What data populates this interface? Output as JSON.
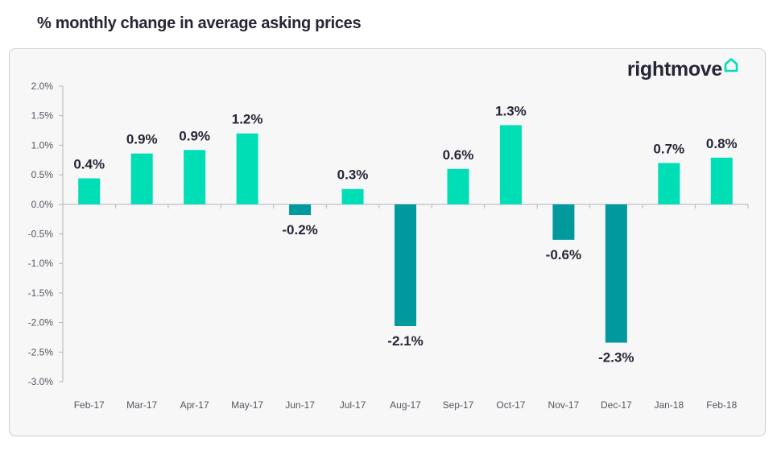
{
  "title": "% monthly change in average asking prices",
  "brand": {
    "name": "rightmove",
    "icon": "house-outline-icon",
    "icon_color": "#00deb6"
  },
  "colors": {
    "positive": "#00deb6",
    "negative": "#00999e",
    "text": "#262637"
  },
  "chart_data": {
    "type": "bar",
    "categories": [
      "Feb-17",
      "Mar-17",
      "Apr-17",
      "May-17",
      "Jun-17",
      "Jul-17",
      "Aug-17",
      "Sep-17",
      "Oct-17",
      "Nov-17",
      "Dec-17",
      "Jan-18",
      "Feb-18"
    ],
    "values": [
      0.44,
      0.86,
      0.92,
      1.2,
      -0.18,
      0.26,
      -2.06,
      0.6,
      1.34,
      -0.6,
      -2.34,
      0.7,
      0.79
    ],
    "data_labels": [
      "0.4%",
      "0.9%",
      "0.9%",
      "1.2%",
      "-0.2%",
      "0.3%",
      "-2.1%",
      "0.6%",
      "1.3%",
      "-0.6%",
      "-2.3%",
      "0.7%",
      "0.8%"
    ],
    "yticks": [
      2.0,
      1.5,
      1.0,
      0.5,
      0.0,
      -0.5,
      -1.0,
      -1.5,
      -2.0,
      -2.5,
      -3.0
    ],
    "ytick_labels": [
      "2.0%",
      "1.5%",
      "1.0%",
      "0.5%",
      "0.0%",
      "-0.5%",
      "-1.0%",
      "-1.5%",
      "-2.0%",
      "-2.5%",
      "-3.0%"
    ],
    "ylim": [
      -3.0,
      2.0
    ],
    "xlabel": "",
    "ylabel": "",
    "grid": false,
    "legend": "none"
  }
}
